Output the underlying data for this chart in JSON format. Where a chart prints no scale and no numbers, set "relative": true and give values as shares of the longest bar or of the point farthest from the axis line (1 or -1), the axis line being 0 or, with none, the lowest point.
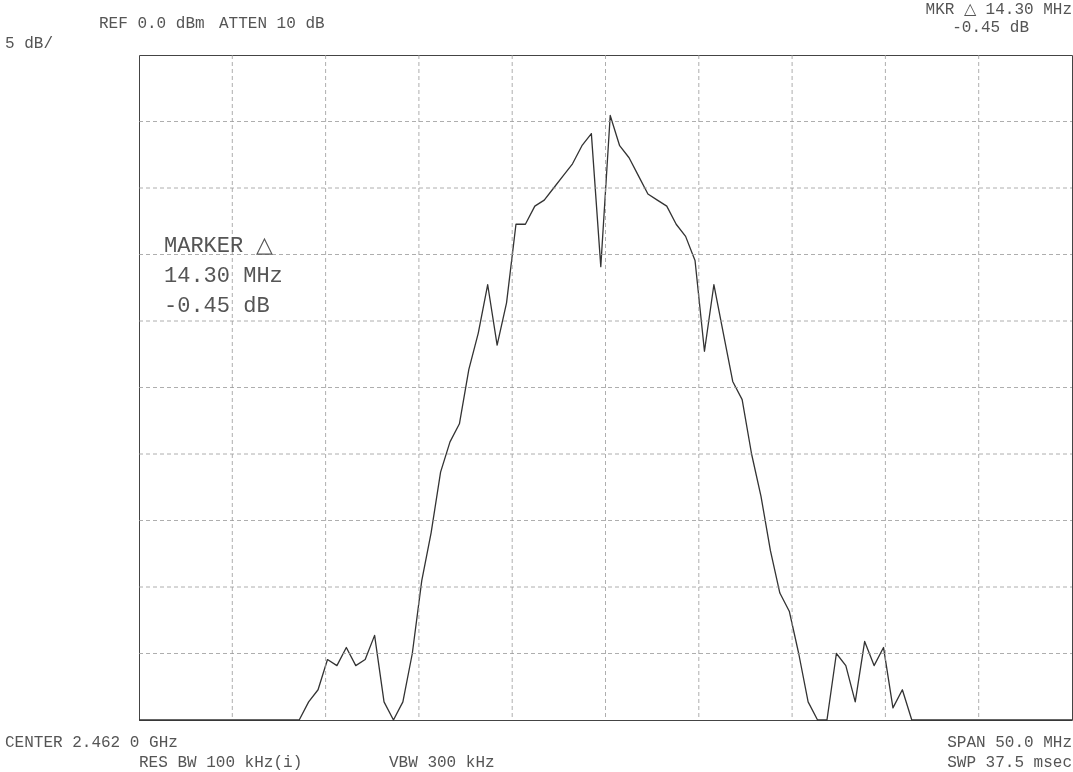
{
  "chart_data": {
    "type": "line",
    "relative": true,
    "grid": true,
    "marker": "none",
    "line_style": "solid",
    "categories": [
      null,
      null,
      null,
      null,
      null,
      null,
      null,
      null,
      null,
      null,
      null,
      null,
      null,
      null,
      null,
      null,
      null,
      null,
      null,
      null,
      null,
      null,
      null,
      null,
      null,
      null,
      null,
      null,
      null,
      null,
      null,
      null,
      null,
      null,
      null,
      null,
      null,
      null,
      null,
      null,
      null,
      null,
      null,
      null,
      null,
      null,
      null,
      null,
      null,
      null,
      null,
      null,
      null,
      null,
      null,
      null,
      null,
      null,
      null,
      null,
      null,
      null,
      null,
      null,
      null,
      null,
      null,
      null,
      null,
      null,
      null,
      null,
      null,
      null,
      null,
      null,
      null,
      null,
      null,
      null,
      null,
      null,
      null,
      null,
      null,
      null,
      null,
      null,
      null,
      null,
      null,
      null,
      null,
      null,
      null,
      null,
      null,
      null,
      null,
      null
    ],
    "series": [
      {
        "color": "#333333",
        "values": [
          0,
          0,
          0,
          0,
          0,
          0,
          0,
          0,
          0,
          0,
          0,
          0,
          0,
          0,
          0,
          0,
          0,
          0,
          0.03,
          0.05,
          0.1,
          0.09,
          0.12,
          0.09,
          0.1,
          0.14,
          0.03,
          0,
          0.03,
          0.11,
          0.23,
          0.31,
          0.41,
          0.46,
          0.49,
          0.58,
          0.64,
          0.72,
          0.62,
          0.69,
          0.82,
          0.82,
          0.85,
          0.86,
          0.88,
          0.9,
          0.92,
          0.95,
          0.97,
          0.75,
          1,
          0.95,
          0.93,
          0.9,
          0.87,
          0.86,
          0.85,
          0.82,
          0.8,
          0.76,
          0.61,
          0.72,
          0.64,
          0.56,
          0.53,
          0.44,
          0.37,
          0.28,
          0.21,
          0.18,
          0.11,
          0.03,
          0,
          0,
          0.11,
          0.09,
          0.03,
          0.13,
          0.09,
          0.12,
          0.02,
          0.05,
          0,
          0,
          0,
          0,
          0,
          0,
          0,
          0,
          0,
          0,
          0,
          0,
          0,
          0,
          0,
          0,
          0,
          0
        ]
      }
    ],
    "annotations": [
      "REF  0.0 dBm",
      "ATTEN 10 dB",
      "MKR △ 14.30 MHz",
      "-0.45 dB",
      "5 dB/",
      "MARKER △",
      "14.30 MHz",
      "-0.45 dB",
      "CENTER 2.462 0 GHz",
      "SPAN 50.0 MHz",
      "RES BW 100 kHz(i)",
      "VBW 300 kHz",
      "SWP 37.5 msec"
    ]
  }
}
